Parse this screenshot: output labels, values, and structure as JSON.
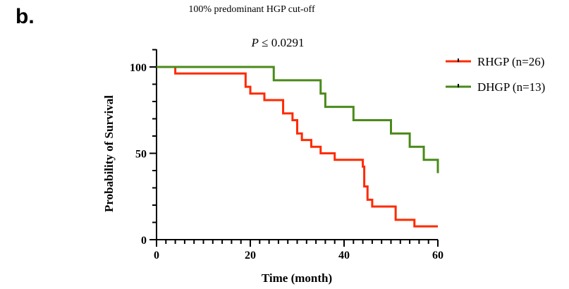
{
  "panel_label": "b.",
  "chart_data": {
    "type": "line",
    "subtype": "kaplan-meier step",
    "title": "100% predominant HGP cut-off",
    "annotation": {
      "p_symbol": "P",
      "p_rest": " ≤ 0.0291"
    },
    "xlabel": "Time (month)",
    "ylabel": "Probability of Survival",
    "xlim": [
      0,
      60
    ],
    "ylim": [
      0,
      110
    ],
    "xticks": [
      0,
      20,
      40,
      60
    ],
    "xminor_step": 2,
    "yticks": [
      0,
      50,
      100
    ],
    "yminor_step": 10,
    "grid": false,
    "legend_position": "top-right",
    "series": [
      {
        "name": "RHGP (n=26)",
        "color": "#ff2a00",
        "steps": [
          [
            0,
            100
          ],
          [
            4,
            96.2
          ],
          [
            19,
            88.5
          ],
          [
            20,
            84.6
          ],
          [
            23,
            80.8
          ],
          [
            27,
            73.1
          ],
          [
            29,
            69.2
          ],
          [
            30,
            61.5
          ],
          [
            31,
            57.7
          ],
          [
            33,
            53.8
          ],
          [
            35,
            50.0
          ],
          [
            38,
            46.2
          ],
          [
            44,
            42.3
          ],
          [
            44.3,
            30.8
          ],
          [
            45,
            23.1
          ],
          [
            46,
            19.2
          ],
          [
            51,
            11.5
          ],
          [
            55,
            7.7
          ],
          [
            60,
            7.7
          ]
        ]
      },
      {
        "name": "DHGP (n=13)",
        "color": "#4a8a1a",
        "steps": [
          [
            0,
            100
          ],
          [
            25,
            92.3
          ],
          [
            35,
            84.6
          ],
          [
            36,
            76.9
          ],
          [
            42,
            69.2
          ],
          [
            50,
            61.5
          ],
          [
            54,
            53.8
          ],
          [
            57,
            46.2
          ],
          [
            60,
            38.5
          ]
        ]
      }
    ]
  }
}
